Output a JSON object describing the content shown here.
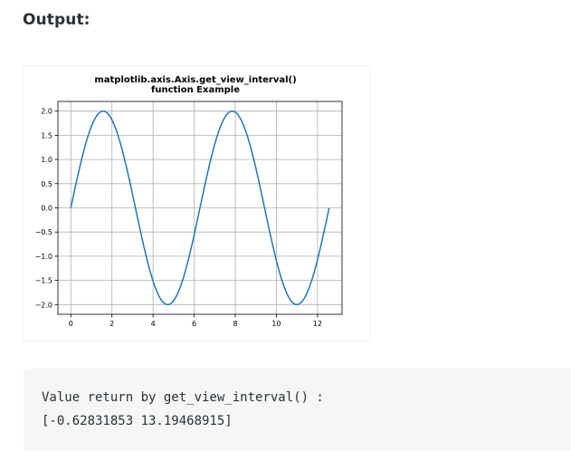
{
  "page": {
    "heading": "Output:"
  },
  "chart_data": {
    "type": "line",
    "title": "matplotlib.axis.Axis.get_view_interval()\nfunction Example",
    "title_lines": [
      "matplotlib.axis.Axis.get_view_interval()",
      "function Example"
    ],
    "xlabel": "",
    "ylabel": "",
    "xlim": [
      -0.62831853,
      13.19468915
    ],
    "ylim": [
      -2.2,
      2.2
    ],
    "x_ticks": [
      0,
      2,
      4,
      6,
      8,
      10,
      12
    ],
    "x_tick_labels": [
      "0",
      "2",
      "4",
      "6",
      "8",
      "10",
      "12"
    ],
    "y_ticks": [
      2.0,
      1.5,
      1.0,
      0.5,
      0.0,
      -0.5,
      -1.0,
      -1.5,
      -2.0
    ],
    "y_tick_labels": [
      "2.0",
      "1.5",
      "1.0",
      "0.5",
      "0.0",
      "−0.5",
      "−1.0",
      "−1.5",
      "−2.0"
    ],
    "grid": true,
    "series": [
      {
        "function": "2*sin(x)",
        "x_range": [
          0,
          12.566370614
        ],
        "color": "#1f77b4"
      }
    ]
  },
  "output": {
    "lines": [
      "Value return by get_view_interval() :",
      "[-0.62831853 13.19468915]"
    ]
  }
}
